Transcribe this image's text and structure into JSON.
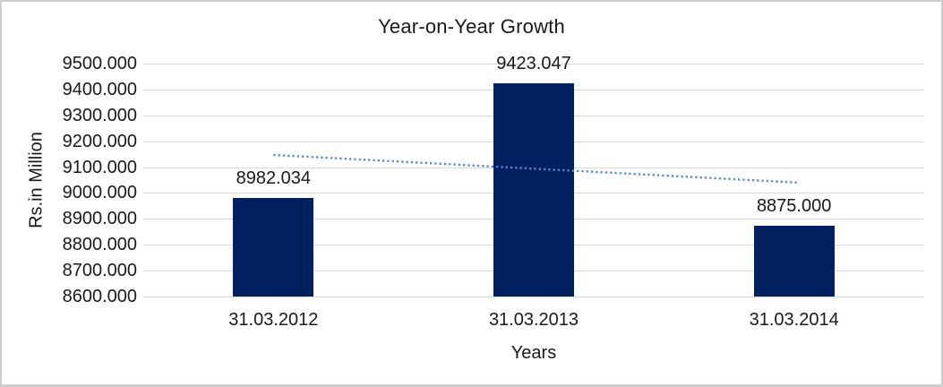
{
  "chart_data": {
    "type": "bar",
    "title": "Year-on-Year Growth",
    "xlabel": "Years",
    "ylabel": "Rs.in Million",
    "categories": [
      "31.03.2012",
      "31.03.2013",
      "31.03.2014"
    ],
    "values": [
      8982.034,
      9423.047,
      8875.0
    ],
    "data_labels": [
      "8982.034",
      "9423.047",
      "8875.000"
    ],
    "ylim": [
      8600,
      9500
    ],
    "ytick_step": 100,
    "ytick_decimals": 3,
    "grid": true,
    "legend_position": "none",
    "trendline": {
      "type": "linear",
      "style": "dotted",
      "start_value": 9147,
      "end_value": 9040
    },
    "colors": {
      "bar": "#002060",
      "gridline": "#d9d9d9",
      "trendline": "#548ac9",
      "text": "#1a1a1a",
      "background": "#ffffff",
      "frame_border": "#cdcdcd"
    }
  }
}
